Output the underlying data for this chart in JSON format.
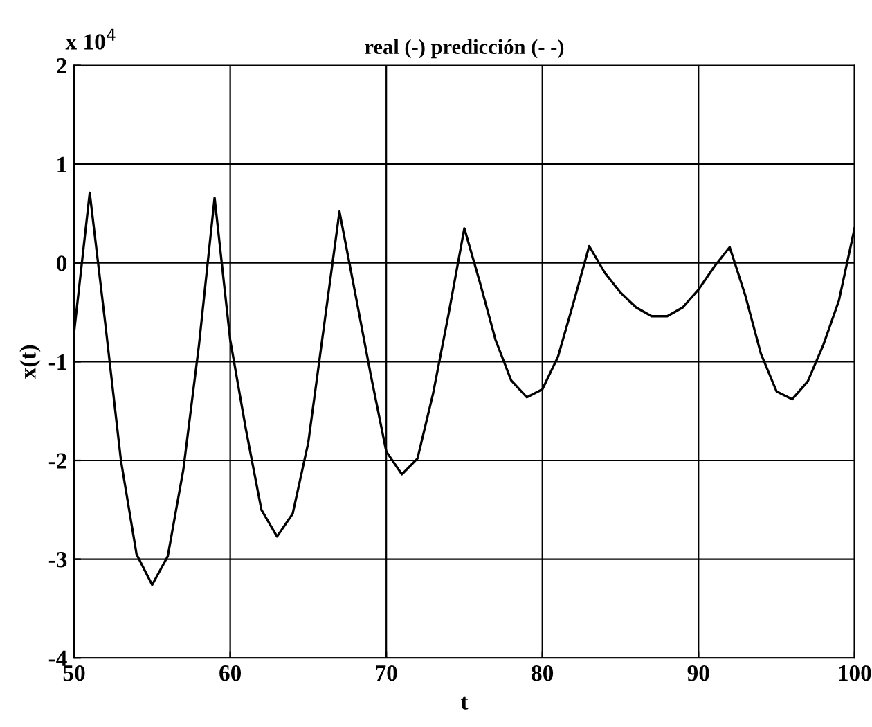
{
  "chart_data": {
    "type": "line",
    "title": "real (-) predicción (- -)",
    "xlabel": "t",
    "ylabel": "x(t)",
    "annotations": [
      "x 10$^{4}$"
    ],
    "x": [
      50,
      51,
      52,
      53,
      54,
      55,
      56,
      57,
      58,
      59,
      60,
      61,
      62,
      63,
      64,
      65,
      66,
      67,
      68,
      69,
      70,
      71,
      72,
      73,
      74,
      75,
      76,
      77,
      78,
      79,
      80,
      81,
      82,
      83,
      84,
      85,
      86,
      87,
      88,
      89,
      90,
      91,
      92,
      93,
      94,
      95,
      96,
      97,
      98,
      99,
      100
    ],
    "series": [
      {
        "color": "#000000",
        "values": [
          -0.7,
          0.71,
          -0.62,
          -2.0,
          -2.95,
          -3.26,
          -2.97,
          -2.09,
          -0.83,
          0.66,
          -0.78,
          -1.68,
          -2.5,
          -2.77,
          -2.54,
          -1.82,
          -0.65,
          0.52,
          -0.3,
          -1.13,
          -1.91,
          -2.14,
          -1.98,
          -1.32,
          -0.51,
          0.35,
          -0.2,
          -0.78,
          -1.19,
          -1.36,
          -1.28,
          -0.95,
          -0.4,
          0.17,
          -0.1,
          -0.3,
          -0.45,
          -0.54,
          -0.54,
          -0.45,
          -0.27,
          -0.04,
          0.16,
          -0.33,
          -0.92,
          -1.3,
          -1.38,
          -1.2,
          -0.83,
          -0.38,
          0.35
        ]
      }
    ],
    "xlim": [
      50,
      100
    ],
    "ylim": [
      -4,
      2
    ],
    "xticks": [
      50,
      60,
      70,
      80,
      90,
      100
    ],
    "yticks": [
      -4,
      -3,
      -2,
      -1,
      0,
      1,
      2
    ],
    "grid": true,
    "line_style": "solid",
    "marker": "none"
  }
}
